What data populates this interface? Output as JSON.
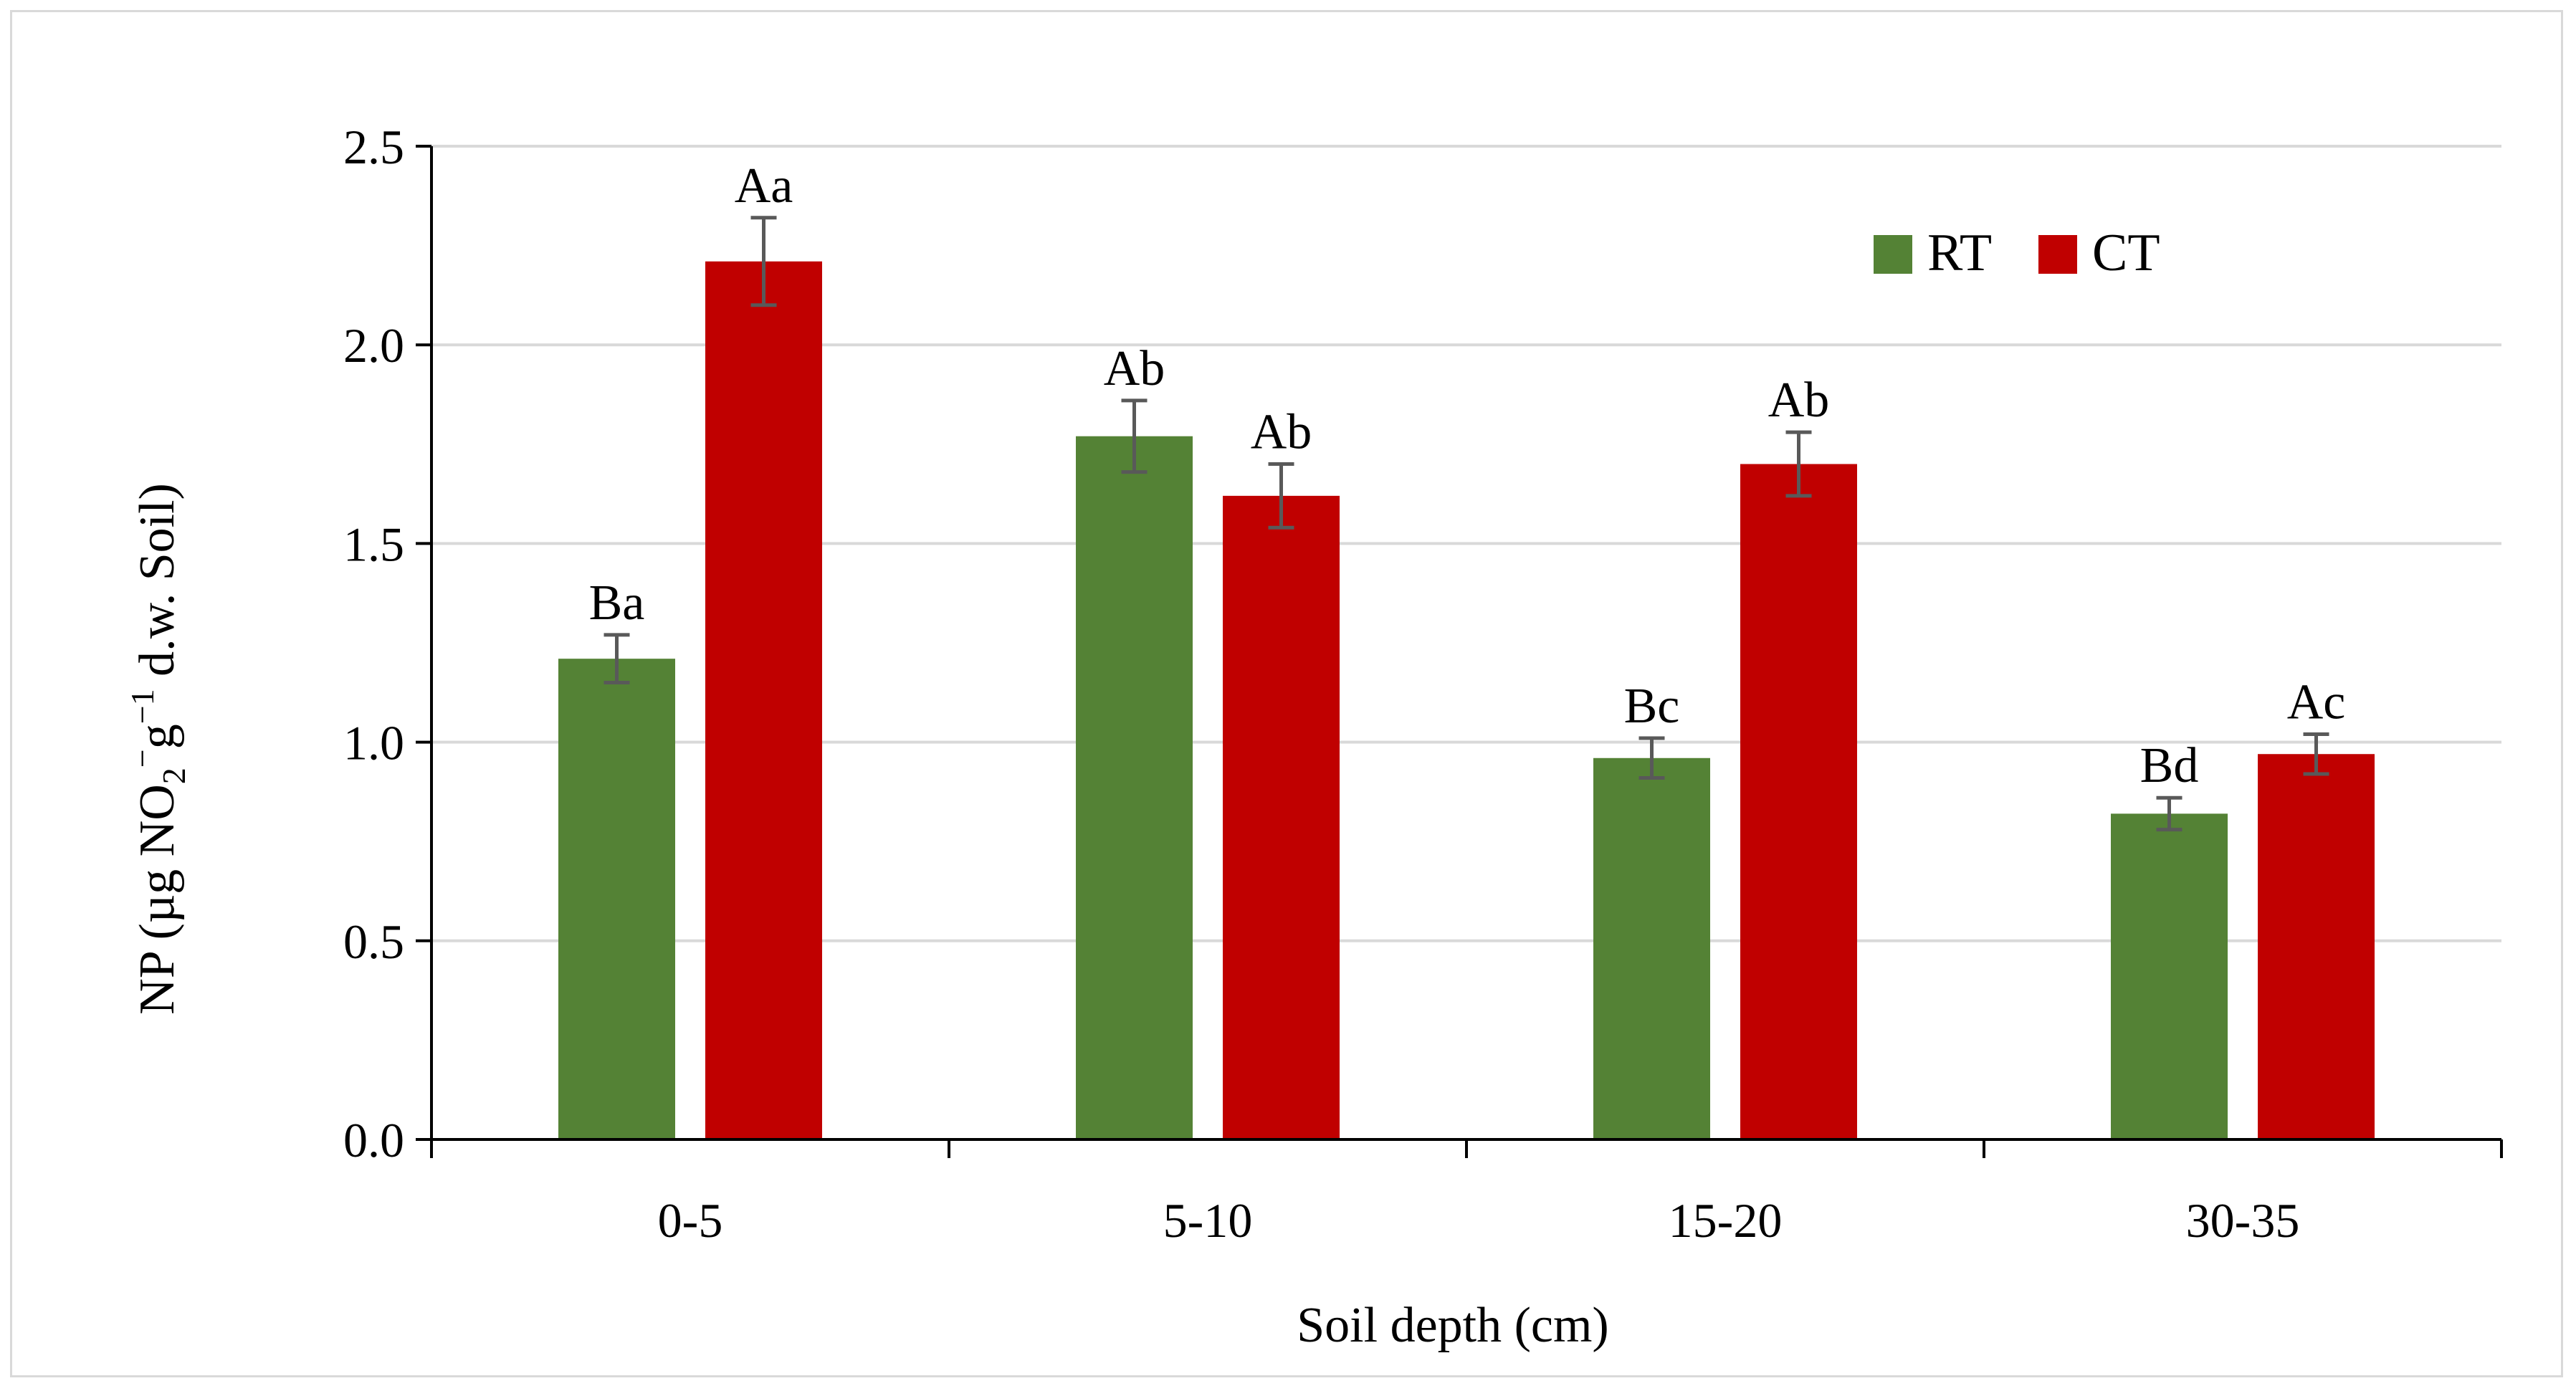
{
  "chart_data": {
    "type": "bar",
    "title": "",
    "xlabel": "Soil depth (cm)",
    "ylabel": {
      "prefix": "NP (µg NO",
      "sub": "2",
      "sup1": "−",
      "mid": "g",
      "sup2": "−1",
      "suffix": " d.w. Soil)"
    },
    "categories": [
      "0-5",
      "5-10",
      "15-20",
      "30-35"
    ],
    "ylim": [
      0,
      2.5
    ],
    "yticks": [
      "0.0",
      "0.5",
      "1.0",
      "1.5",
      "2.0",
      "2.5"
    ],
    "grid": true,
    "legend_position": "top-right",
    "series": [
      {
        "name": "RT",
        "color": "#548235",
        "values": [
          1.21,
          1.77,
          0.96,
          0.82
        ],
        "errors": [
          0.06,
          0.09,
          0.05,
          0.04
        ],
        "labels": [
          "Ba",
          "Ab",
          "Bc",
          "Bd"
        ]
      },
      {
        "name": "CT",
        "color": "#c00000",
        "values": [
          2.21,
          1.62,
          1.7,
          0.97
        ],
        "errors": [
          0.11,
          0.08,
          0.08,
          0.05
        ],
        "labels": [
          "Aa",
          "Ab",
          "Ab",
          "Ac"
        ]
      }
    ]
  }
}
